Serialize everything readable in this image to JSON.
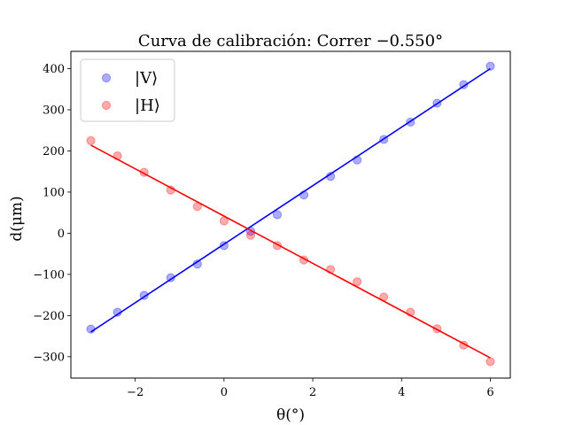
{
  "chart_data": {
    "type": "scatter",
    "title": "Curva de calibración: Correr −0.550°",
    "xlabel": "θ(°)",
    "ylabel": "d(μm)",
    "xlim": [
      -3.45,
      6.45
    ],
    "ylim": [
      -352,
      442
    ],
    "xticks": [
      -2,
      0,
      2,
      4,
      6
    ],
    "xtick_labels": [
      "−2",
      "0",
      "2",
      "4",
      "6"
    ],
    "yticks": [
      -300,
      -200,
      -100,
      0,
      100,
      200,
      300,
      400
    ],
    "ytick_labels": [
      "−300",
      "−200",
      "−100",
      "0",
      "100",
      "200",
      "300",
      "400"
    ],
    "grid": false,
    "legend_position": "top-left",
    "series": [
      {
        "name": "|V⟩",
        "color": "#0000ff",
        "points": {
          "x": [
            -3.0,
            -2.4,
            -1.8,
            -1.2,
            -0.6,
            0.0,
            0.6,
            1.2,
            1.8,
            2.4,
            3.0,
            3.6,
            4.2,
            4.8,
            5.4,
            6.0
          ],
          "y": [
            -233,
            -192,
            -151,
            -108,
            -75,
            -30,
            5,
            45,
            93,
            138,
            178,
            228,
            270,
            316,
            361,
            406
          ]
        },
        "fit": {
          "x": [
            -3.0,
            6.0
          ],
          "y": [
            -240,
            400
          ]
        }
      },
      {
        "name": "|H⟩",
        "color": "#ff0000",
        "points": {
          "x": [
            -3.0,
            -2.4,
            -1.8,
            -1.2,
            -0.6,
            0.0,
            0.6,
            1.2,
            1.8,
            2.4,
            3.0,
            3.6,
            4.2,
            4.8,
            5.4,
            6.0
          ],
          "y": [
            225,
            188,
            148,
            105,
            65,
            30,
            -5,
            -30,
            -65,
            -88,
            -118,
            -155,
            -192,
            -232,
            -272,
            -312
          ]
        },
        "fit": {
          "x": [
            -3.0,
            6.0
          ],
          "y": [
            214,
            -303
          ]
        }
      }
    ]
  }
}
